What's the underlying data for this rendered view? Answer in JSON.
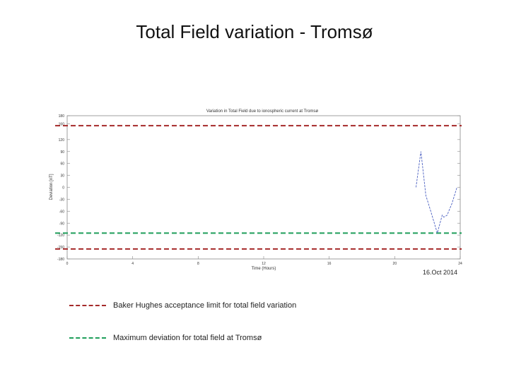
{
  "slide": {
    "title": "Total Field variation - Tromsø",
    "date": "16.Oct 2014"
  },
  "legend": [
    {
      "label": "Baker Hughes acceptance limit for total field variation",
      "color": "#a52a2a"
    },
    {
      "label": "Maximum deviation for total field at Tromsø",
      "color": "#1e9e5a"
    }
  ],
  "chart_data": {
    "type": "line",
    "title": "Variation in Total Field due to ionospheric current at Tromsø",
    "xlabel": "Time (Hours)",
    "ylabel": "Deviation [nT]",
    "xlim": [
      0,
      24
    ],
    "ylim": [
      -180,
      180
    ],
    "xticks": [
      0,
      4,
      8,
      12,
      16,
      20,
      24
    ],
    "yticks": [
      180,
      160,
      120,
      90,
      60,
      30,
      0,
      -30,
      -60,
      -90,
      -120,
      -150,
      -180
    ],
    "ytick_labels": [
      "180",
      "160",
      "120",
      "90",
      "60",
      "30",
      "0",
      "-30",
      "-60",
      "-90",
      "-120",
      "-150",
      "-180"
    ],
    "series": [
      {
        "color": "#4a5fc1",
        "x": [
          21.3,
          21.6,
          21.9,
          22.2,
          22.6,
          22.9,
          23.0,
          23.2,
          23.5,
          23.8
        ],
        "y": [
          0,
          90,
          -20,
          -60,
          -115,
          -70,
          -75,
          -70,
          -40,
          0
        ]
      }
    ],
    "reference_lines": [
      {
        "y": 155,
        "color": "#a52a2a"
      },
      {
        "y": -155,
        "color": "#a52a2a"
      },
      {
        "y": -115,
        "color": "#1e9e5a"
      }
    ]
  }
}
